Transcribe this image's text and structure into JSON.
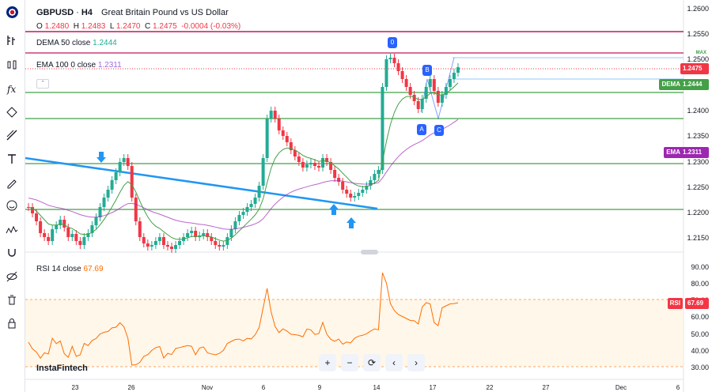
{
  "symbol": {
    "ticker": "GBPUSD",
    "interval": "H4",
    "name": "Great Britain Pound vs US Dollar"
  },
  "ohlc": {
    "o_label": "O",
    "o": "1.2480",
    "h_label": "H",
    "h": "1.2483",
    "l_label": "L",
    "l": "1.2470",
    "c_label": "C",
    "c": "1.2475",
    "change": "-0.0004 (-0.03%)"
  },
  "dema": {
    "name": "DEMA",
    "params": "50 close",
    "value": "1.2444",
    "color": "#43a047"
  },
  "ema": {
    "name": "EMA",
    "params": "100 0 close",
    "value": "1.2311",
    "color": "#9c27b0"
  },
  "rsi": {
    "name": "RSI",
    "params": "14 close",
    "value": "67.69",
    "color": "#ff6d00"
  },
  "price_axis": [
    "1.2600",
    "1.2550",
    "1.2500",
    "1.2450",
    "1.2400",
    "1.2350",
    "1.2300",
    "1.2250",
    "1.2200",
    "1.2150"
  ],
  "rsi_axis": [
    "90.00",
    "80.00",
    "70.00",
    "60.00",
    "50.00",
    "40.00",
    "30.00"
  ],
  "tags": {
    "max": "MAX",
    "price": "1.2475",
    "dema": "DEMA",
    "dema_val": "1.2444",
    "ema": "EMA",
    "ema_val": "1.2311",
    "rsi": "RSI",
    "rsi_val": "67.69"
  },
  "time_axis": [
    "23",
    "26",
    "Nov",
    "6",
    "9",
    "14",
    "17",
    "22",
    "27",
    "Dec",
    "6"
  ],
  "wave_labels": {
    "zero": "0",
    "a": "A",
    "b": "B",
    "c": "C"
  },
  "watermark": "InstaFintech",
  "navigation": {
    "zoom_in": "+",
    "zoom_out": "−",
    "reset": "⟳",
    "left": "‹",
    "right": "›"
  },
  "icons": [
    "chart-type-icon",
    "indicators-icon",
    "formula-icon",
    "cursor-icon",
    "trend-line-icon",
    "text-icon",
    "brush-icon",
    "emoji-icon",
    "pattern-icon",
    "magnet-icon",
    "hide-icon",
    "trash-icon",
    "lock-icon"
  ],
  "colors": {
    "up": "#22ab94",
    "down": "#f23645",
    "accent": "#2962ff",
    "horizontal_line": "#43a047",
    "top_line": "#c2185b"
  }
}
